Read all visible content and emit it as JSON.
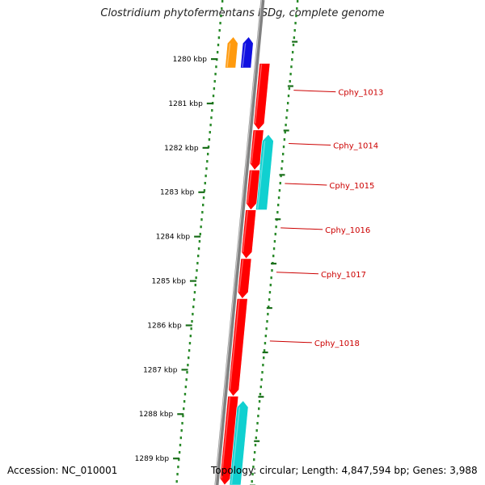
{
  "title": "Clostridium phytofermentans ISDg, complete genome",
  "footer": {
    "accession": "Accession: NC_010001",
    "summary": "Topology: circular; Length: 4,847,594 bp; Genes: 3,988"
  },
  "ticks": [
    {
      "label": "1280 kbp",
      "kbp": 1280
    },
    {
      "label": "1281 kbp",
      "kbp": 1281
    },
    {
      "label": "1282 kbp",
      "kbp": 1282
    },
    {
      "label": "1283 kbp",
      "kbp": 1283
    },
    {
      "label": "1284 kbp",
      "kbp": 1284
    },
    {
      "label": "1285 kbp",
      "kbp": 1285
    },
    {
      "label": "1286 kbp",
      "kbp": 1286
    },
    {
      "label": "1287 kbp",
      "kbp": 1287
    },
    {
      "label": "1288 kbp",
      "kbp": 1288
    },
    {
      "label": "1289 kbp",
      "kbp": 1289
    }
  ],
  "genes": [
    {
      "label": "",
      "strand": "reverse",
      "color": "#ff9a0d",
      "start_kbp": 1279.5,
      "end_kbp": 1280.2
    },
    {
      "label": "",
      "strand": "reverse",
      "color": "#1010e0",
      "start_kbp": 1279.5,
      "end_kbp": 1280.2
    },
    {
      "label": "Cphy_1013",
      "strand": "forward",
      "color": "#ff0000",
      "start_kbp": 1280.1,
      "end_kbp": 1281.6
    },
    {
      "label": "Cphy_1014",
      "strand": "forward",
      "color": "#ff0000",
      "start_kbp": 1281.6,
      "end_kbp": 1282.5
    },
    {
      "label": "",
      "strand": "reverse",
      "color": "#10d0d0",
      "start_kbp": 1281.7,
      "end_kbp": 1283.4
    },
    {
      "label": "Cphy_1015",
      "strand": "forward",
      "color": "#ff0000",
      "start_kbp": 1282.5,
      "end_kbp": 1283.4
    },
    {
      "label": "Cphy_1016",
      "strand": "forward",
      "color": "#ff0000",
      "start_kbp": 1283.4,
      "end_kbp": 1284.5
    },
    {
      "label": "Cphy_1017",
      "strand": "forward",
      "color": "#ff0000",
      "start_kbp": 1284.5,
      "end_kbp": 1285.4
    },
    {
      "label": "Cphy_1018",
      "strand": "forward",
      "color": "#ff0000",
      "start_kbp": 1285.4,
      "end_kbp": 1287.6
    },
    {
      "label": "",
      "strand": "forward",
      "color": "#ff0000",
      "start_kbp": 1287.6,
      "end_kbp": 1289.6
    },
    {
      "label": "",
      "strand": "reverse",
      "color": "#10d0d0",
      "start_kbp": 1287.7,
      "end_kbp": 1289.6
    }
  ],
  "colors": {
    "backbone": "#808080",
    "tick": "#1a6e1a",
    "dots": "#2a8a2a",
    "label": "#cc0000"
  }
}
